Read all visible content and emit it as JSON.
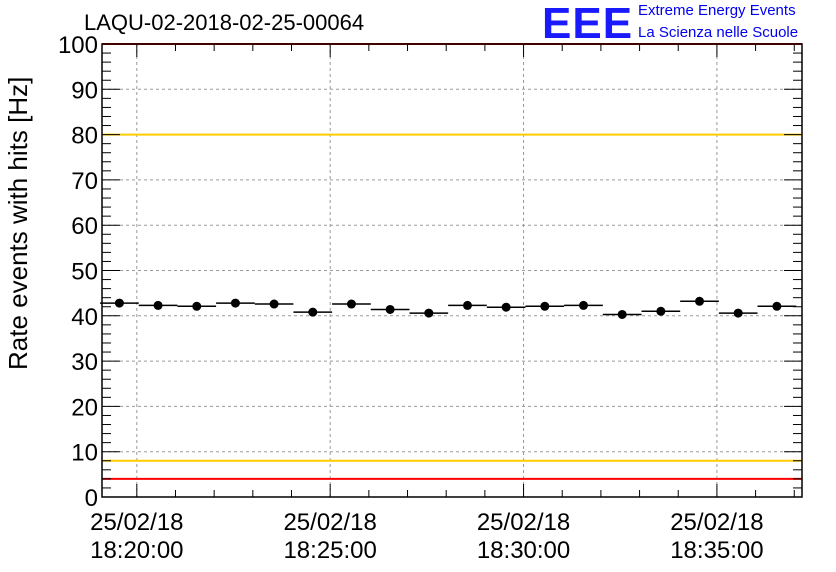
{
  "chart_data": {
    "type": "scatter",
    "title": "LAQU-02-2018-02-25-00064",
    "ylabel": "Rate events with hits [Hz]",
    "xlabel": "",
    "ylim": [
      0,
      100
    ],
    "yticks": [
      0,
      10,
      20,
      30,
      40,
      50,
      60,
      70,
      80,
      90,
      100
    ],
    "xlim_minutes": [
      -0.9,
      17.2
    ],
    "xticks": [
      {
        "minute": 0,
        "date": "25/02/18",
        "time": "18:20:00"
      },
      {
        "minute": 5,
        "date": "25/02/18",
        "time": "18:25:00"
      },
      {
        "minute": 10,
        "date": "25/02/18",
        "time": "18:30:00"
      },
      {
        "minute": 15,
        "date": "25/02/18",
        "time": "18:35:00"
      }
    ],
    "bin_width_minutes": 1,
    "series": [
      {
        "name": "rate",
        "x_minutes": [
          -0.45,
          0.55,
          1.55,
          2.55,
          3.55,
          4.55,
          5.55,
          6.55,
          7.55,
          8.55,
          9.55,
          10.55,
          11.55,
          12.55,
          13.55,
          14.55,
          15.55,
          16.55
        ],
        "values": [
          42.8,
          42.3,
          42.1,
          42.8,
          42.6,
          40.8,
          42.6,
          41.4,
          40.6,
          42.3,
          41.9,
          42.1,
          42.3,
          40.3,
          41.0,
          43.2,
          40.6,
          42.1
        ]
      }
    ],
    "reference_lines": [
      {
        "value": 80,
        "color": "#ffcc00"
      },
      {
        "value": 8,
        "color": "#ffcc00"
      },
      {
        "value": 4,
        "color": "#ff0000"
      },
      {
        "value": 100,
        "color": "#ff0000"
      }
    ],
    "grid": true
  },
  "logo": {
    "mark": "EEE",
    "line1": "Extreme Energy Events",
    "line2": "La Scienza nelle Scuole"
  }
}
